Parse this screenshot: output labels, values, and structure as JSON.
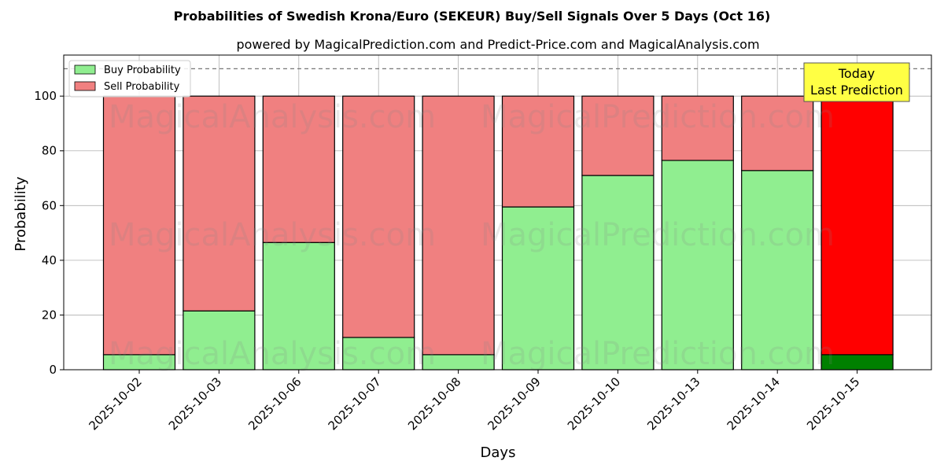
{
  "chart_data": {
    "type": "bar",
    "stacked": true,
    "title": "Probabilities of Swedish Krona/Euro (SEKEUR) Buy/Sell Signals Over 5 Days (Oct 16)",
    "subtitle": "powered by MagicalPrediction.com and Predict-Price.com and MagicalAnalysis.com",
    "xlabel": "Days",
    "ylabel": "Probability",
    "ylim": [
      0,
      115
    ],
    "yticks": [
      0,
      20,
      40,
      60,
      80,
      100
    ],
    "grid": true,
    "legend_position": "top-left",
    "reference_line": 110,
    "categories": [
      "2025-10-02",
      "2025-10-03",
      "2025-10-06",
      "2025-10-07",
      "2025-10-08",
      "2025-10-09",
      "2025-10-10",
      "2025-10-13",
      "2025-10-14",
      "2025-10-15"
    ],
    "series": [
      {
        "name": "Buy Probability",
        "color": "#90EE90",
        "highlight_color": "#008000",
        "values": [
          5.5,
          21.5,
          46.5,
          11.8,
          5.5,
          59.5,
          71.0,
          76.5,
          72.8,
          5.5
        ]
      },
      {
        "name": "Sell Probability",
        "color": "#F08080",
        "highlight_color": "#FF0000",
        "values": [
          94.5,
          78.5,
          53.5,
          88.2,
          94.5,
          40.5,
          29.0,
          23.5,
          27.2,
          94.5
        ]
      }
    ],
    "highlight_index": 9,
    "annotation": {
      "line1": "Today",
      "line2": "Last Prediction",
      "color": "#FFFF44"
    },
    "watermarks": [
      "MagicalAnalysis.com",
      "MagicalPrediction.com"
    ]
  }
}
